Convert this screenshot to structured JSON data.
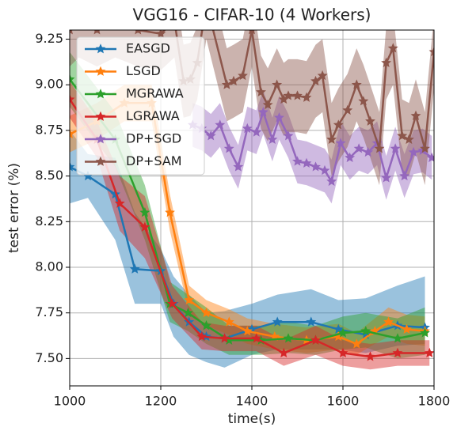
{
  "chart_data": {
    "type": "line",
    "title": "VGG16 - CIFAR-10 (4 Workers)",
    "x_label": "time(s)",
    "y_label": "test error (%)",
    "xlim": [
      1000,
      1800
    ],
    "xticks": [
      1000,
      1200,
      1400,
      1600,
      1800
    ],
    "ylim": [
      7.35,
      9.3
    ],
    "yticks": [
      {
        "value": 7.5,
        "label": "7.50"
      },
      7.75,
      {
        "value": 8,
        "label": "8.00"
      },
      8.25,
      {
        "value": 8.5,
        "label": "8.50"
      },
      8.75,
      {
        "value": 9,
        "label": "9.00"
      },
      9.25
    ],
    "grid": true,
    "legend": "upper left",
    "series": [
      {
        "name": "EASGD",
        "color": "#1f77b4",
        "x": [
          1000,
          1040,
          1100,
          1143,
          1200,
          1228,
          1262,
          1300,
          1340,
          1400,
          1456,
          1530,
          1590,
          1650,
          1720,
          1780
        ],
        "values": [
          8.55,
          8.5,
          8.4,
          7.99,
          7.98,
          7.8,
          7.7,
          7.62,
          7.61,
          7.66,
          7.7,
          7.7,
          7.66,
          7.63,
          7.68,
          7.67
        ],
        "lower": [
          8.35,
          8.38,
          8.15,
          7.8,
          7.8,
          7.62,
          7.52,
          7.48,
          7.45,
          7.52,
          7.55,
          7.55,
          7.55,
          7.53,
          7.57,
          7.58
        ],
        "upper": [
          8.75,
          8.62,
          8.6,
          8.3,
          8.1,
          7.95,
          7.85,
          7.75,
          7.76,
          7.8,
          7.85,
          7.88,
          7.82,
          7.83,
          7.9,
          7.95
        ]
      },
      {
        "name": "LSGD",
        "color": "#ff7f0e",
        "x": [
          1000,
          1060,
          1120,
          1180,
          1220,
          1262,
          1300,
          1350,
          1390,
          1450,
          1520,
          1590,
          1630,
          1670,
          1700,
          1740,
          1780
        ],
        "values": [
          8.73,
          8.8,
          8.9,
          8.9,
          8.3,
          7.82,
          7.75,
          7.7,
          7.65,
          7.62,
          7.6,
          7.62,
          7.58,
          7.65,
          7.7,
          7.66,
          7.65
        ],
        "lower": [
          8.63,
          8.7,
          8.8,
          8.8,
          8.2,
          7.75,
          7.68,
          7.63,
          7.58,
          7.55,
          7.53,
          7.55,
          7.52,
          7.58,
          7.62,
          7.58,
          7.57
        ],
        "upper": [
          8.83,
          8.9,
          9.0,
          9.0,
          8.4,
          7.9,
          7.82,
          7.77,
          7.72,
          7.69,
          7.67,
          7.69,
          7.64,
          7.72,
          7.78,
          7.74,
          7.73
        ]
      },
      {
        "name": "MGRAWA",
        "color": "#2ca02c",
        "x": [
          1000,
          1100,
          1165,
          1220,
          1260,
          1300,
          1350,
          1420,
          1480,
          1540,
          1600,
          1650,
          1720,
          1780
        ],
        "values": [
          9.03,
          8.7,
          8.3,
          7.8,
          7.75,
          7.68,
          7.6,
          7.6,
          7.61,
          7.6,
          7.64,
          7.65,
          7.61,
          7.64
        ],
        "lower": [
          8.88,
          8.55,
          8.15,
          7.7,
          7.65,
          7.58,
          7.52,
          7.52,
          7.53,
          7.52,
          7.55,
          7.56,
          7.5,
          7.52
        ],
        "upper": [
          9.18,
          8.85,
          8.45,
          7.92,
          7.85,
          7.78,
          7.68,
          7.68,
          7.7,
          7.68,
          7.73,
          7.75,
          7.72,
          7.78
        ]
      },
      {
        "name": "LGRAWA",
        "color": "#d62728",
        "x": [
          1000,
          1060,
          1110,
          1165,
          1225,
          1290,
          1340,
          1410,
          1470,
          1540,
          1600,
          1660,
          1720,
          1790
        ],
        "values": [
          8.92,
          8.7,
          8.35,
          8.22,
          7.8,
          7.62,
          7.61,
          7.61,
          7.53,
          7.6,
          7.53,
          7.51,
          7.53,
          7.53
        ],
        "lower": [
          8.82,
          8.6,
          8.2,
          8.05,
          7.72,
          7.55,
          7.54,
          7.54,
          7.46,
          7.52,
          7.46,
          7.44,
          7.46,
          7.46
        ],
        "upper": [
          9.02,
          8.8,
          8.5,
          8.39,
          7.9,
          7.7,
          7.68,
          7.68,
          7.6,
          7.68,
          7.6,
          7.58,
          7.6,
          7.6
        ]
      },
      {
        "name": "DP+SGD",
        "color": "#9467bd",
        "x": [
          1270,
          1290,
          1310,
          1330,
          1350,
          1370,
          1390,
          1410,
          1425,
          1445,
          1460,
          1480,
          1500,
          1520,
          1540,
          1560,
          1575,
          1595,
          1615,
          1635,
          1655,
          1675,
          1695,
          1715,
          1735,
          1755,
          1775,
          1795
        ],
        "values": [
          8.78,
          8.76,
          8.72,
          8.78,
          8.65,
          8.55,
          8.76,
          8.74,
          8.85,
          8.7,
          8.82,
          8.72,
          8.58,
          8.57,
          8.55,
          8.53,
          8.47,
          8.68,
          8.6,
          8.65,
          8.63,
          8.68,
          8.49,
          8.65,
          8.5,
          8.63,
          8.64,
          8.6
        ],
        "lower": [
          8.66,
          8.64,
          8.6,
          8.66,
          8.53,
          8.43,
          8.64,
          8.62,
          8.73,
          8.58,
          8.7,
          8.6,
          8.46,
          8.45,
          8.43,
          8.41,
          8.35,
          8.56,
          8.48,
          8.53,
          8.51,
          8.56,
          8.37,
          8.53,
          8.38,
          8.51,
          8.52,
          8.48
        ],
        "upper": [
          8.9,
          8.88,
          8.84,
          8.9,
          8.77,
          8.67,
          8.88,
          8.86,
          8.97,
          8.82,
          8.94,
          8.84,
          8.7,
          8.69,
          8.67,
          8.65,
          8.59,
          8.8,
          8.72,
          8.77,
          8.75,
          8.8,
          8.61,
          8.77,
          8.62,
          8.75,
          8.76,
          8.72
        ]
      },
      {
        "name": "DP+SAM",
        "color": "#8c564b",
        "x": [
          1000,
          1020,
          1060,
          1100,
          1150,
          1200,
          1230,
          1250,
          1265,
          1280,
          1300,
          1345,
          1360,
          1380,
          1400,
          1420,
          1435,
          1455,
          1470,
          1480,
          1500,
          1520,
          1540,
          1555,
          1575,
          1590,
          1610,
          1630,
          1645,
          1660,
          1680,
          1695,
          1710,
          1730,
          1745,
          1760,
          1780,
          1800
        ],
        "values": [
          9.3,
          9.35,
          9.3,
          9.35,
          9.3,
          9.28,
          9.35,
          9.02,
          9.03,
          9.12,
          9.45,
          9.0,
          9.02,
          9.05,
          9.3,
          8.96,
          8.89,
          9.0,
          8.92,
          8.94,
          8.94,
          8.93,
          9.02,
          9.05,
          8.7,
          8.78,
          8.86,
          9.0,
          8.91,
          8.8,
          8.65,
          9.12,
          9.2,
          8.72,
          8.7,
          8.83,
          8.65,
          9.18
        ],
        "lower": [
          9.1,
          9.15,
          9.1,
          9.15,
          9.1,
          9.08,
          9.15,
          8.82,
          8.83,
          8.92,
          9.25,
          8.8,
          8.82,
          8.85,
          9.1,
          8.76,
          8.69,
          8.8,
          8.72,
          8.74,
          8.74,
          8.73,
          8.82,
          8.85,
          8.5,
          8.58,
          8.66,
          8.8,
          8.71,
          8.6,
          8.45,
          8.92,
          9.0,
          8.52,
          8.5,
          8.63,
          8.45,
          8.98
        ],
        "upper": [
          9.5,
          9.55,
          9.5,
          9.55,
          9.5,
          9.48,
          9.55,
          9.22,
          9.23,
          9.32,
          9.65,
          9.2,
          9.22,
          9.25,
          9.5,
          9.16,
          9.09,
          9.2,
          9.12,
          9.14,
          9.14,
          9.13,
          9.22,
          9.25,
          8.9,
          8.98,
          9.06,
          9.2,
          9.11,
          9.0,
          8.85,
          9.32,
          9.4,
          8.92,
          8.9,
          9.03,
          8.85,
          9.38
        ]
      }
    ]
  }
}
